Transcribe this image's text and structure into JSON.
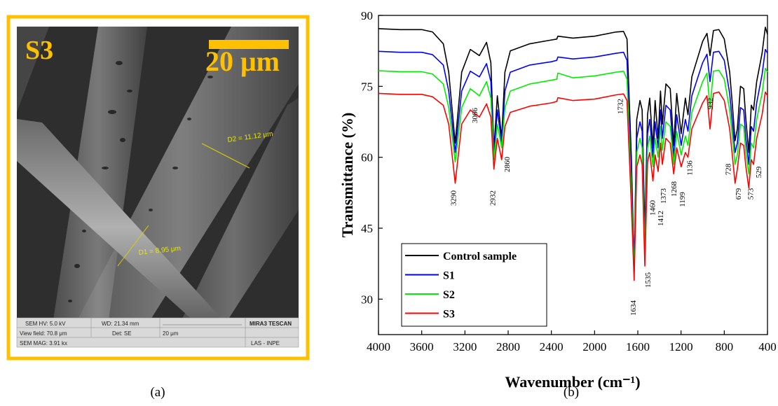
{
  "panel_a": {
    "label": "S3",
    "scale_bar": "20 μm",
    "measurements": [
      "D2 = 11.12 μm",
      "D1 = 8.95 μm"
    ],
    "info_bar": [
      [
        "SEM HV: 5.0 kV",
        "WD: 21.34 mm",
        "MIRA3 TESCAN"
      ],
      [
        "View field: 70.8 μm",
        "Det: SE",
        "20 μm"
      ],
      [
        "SEM MAG: 3.91 kx",
        "LAS - INPE"
      ]
    ]
  },
  "captions": [
    "(a)",
    "(b)"
  ],
  "chart_data": {
    "type": "line",
    "xlabel": "Wavenumber (cm⁻¹)",
    "ylabel": "Transmittance (%)",
    "xlim": [
      4000,
      400
    ],
    "xticks": [
      4000,
      3600,
      3200,
      2800,
      2400,
      2000,
      1600,
      1200,
      800,
      400
    ],
    "ylim": [
      22.5,
      90
    ],
    "yticks": [
      30,
      45,
      60,
      75,
      90
    ],
    "legend": "lower left",
    "x": [
      4000,
      3800,
      3600,
      3500,
      3400,
      3350,
      3290,
      3230,
      3150,
      3066,
      3000,
      2960,
      2932,
      2900,
      2860,
      2830,
      2780,
      2600,
      2400,
      2350,
      2340,
      2200,
      2000,
      1800,
      1732,
      1700,
      1660,
      1634,
      1610,
      1580,
      1560,
      1535,
      1510,
      1490,
      1460,
      1440,
      1412,
      1390,
      1373,
      1340,
      1300,
      1268,
      1240,
      1199,
      1160,
      1136,
      1100,
      1000,
      960,
      932,
      900,
      850,
      800,
      750,
      728,
      700,
      679,
      650,
      620,
      600,
      573,
      550,
      529,
      500,
      450,
      420,
      400
    ],
    "series": [
      {
        "name": "Control sample",
        "color": "#000000",
        "values": [
          87.2,
          87.0,
          87.0,
          86.5,
          84,
          78,
          63,
          78,
          82.8,
          81.5,
          84.3,
          80,
          61.5,
          73,
          64,
          78,
          82.5,
          84,
          84.8,
          85,
          85.6,
          85.2,
          85.6,
          86.5,
          86.6,
          85,
          60,
          36.5,
          68,
          72,
          70,
          44,
          69,
          72.5,
          62,
          72,
          64,
          74,
          67,
          75.5,
          74.5,
          62.5,
          73.5,
          65,
          72.5,
          69,
          77,
          84.5,
          86.2,
          81.5,
          86.8,
          87,
          85,
          78,
          72,
          63.5,
          66,
          75,
          74.5,
          68,
          61,
          71,
          70,
          76,
          82,
          87.5,
          86
        ]
      },
      {
        "name": "S1",
        "color": "#0000ff",
        "values": [
          82.4,
          82.2,
          82.2,
          81.7,
          79.5,
          74,
          61,
          74,
          78.2,
          77,
          79.8,
          76,
          60.5,
          70,
          63,
          74,
          78,
          79.5,
          80.2,
          80.5,
          81.2,
          80.8,
          81.2,
          82,
          82.2,
          80.5,
          56,
          36,
          64,
          67.5,
          65.5,
          42,
          65,
          68,
          60,
          67.5,
          62,
          70,
          64,
          71,
          70,
          60,
          69,
          62.5,
          68,
          65.5,
          73,
          80,
          81.8,
          76,
          82.2,
          82.4,
          80.5,
          73.5,
          68,
          61,
          63,
          70.5,
          70,
          64,
          58.5,
          66.5,
          65.5,
          71.5,
          77.5,
          82.8,
          82
        ]
      },
      {
        "name": "S2",
        "color": "#00ee00",
        "values": [
          78.3,
          78.1,
          78.1,
          77.6,
          75.5,
          70.5,
          59,
          70.5,
          74.5,
          73,
          76,
          72.5,
          59.5,
          67,
          62,
          70.5,
          74,
          75.5,
          76.3,
          76.5,
          77.8,
          76.8,
          77.2,
          78,
          78.2,
          76.5,
          53,
          35.5,
          61,
          64,
          62,
          40,
          62,
          64.5,
          58,
          64,
          60,
          66.5,
          61.5,
          67.5,
          66.5,
          58.5,
          65.5,
          60.5,
          64.5,
          62.5,
          69.5,
          76,
          77.8,
          70.5,
          78.2,
          78.4,
          76.5,
          70,
          65,
          58.5,
          60.5,
          67,
          66.5,
          61,
          56.5,
          63,
          62,
          68,
          73.5,
          78.8,
          78
        ]
      },
      {
        "name": "S3",
        "color": "#ff0000",
        "values": [
          73.5,
          73.3,
          73.3,
          72.8,
          71,
          67,
          54.5,
          67,
          70,
          68.5,
          71.3,
          68.5,
          57.5,
          64,
          59.5,
          66.5,
          69.5,
          70.8,
          71.5,
          71.8,
          72.6,
          72,
          72.3,
          73.2,
          73.4,
          72,
          50,
          34,
          58,
          60.5,
          58.5,
          37,
          59,
          61,
          55,
          60.5,
          57,
          63,
          58.5,
          64,
          63,
          56.5,
          62,
          58,
          61,
          60,
          66,
          71.5,
          73,
          66,
          73.5,
          73.8,
          72,
          66,
          61,
          54.5,
          57.5,
          63,
          62.5,
          58,
          53.5,
          59.5,
          58.5,
          64,
          69,
          73.8,
          73
        ]
      }
    ],
    "annotations": [
      "3290",
      "3066",
      "2932",
      "2860",
      "1732",
      "1634",
      "1535",
      "1460",
      "1412",
      "1373",
      "1268",
      "1199",
      "1136",
      "932",
      "728",
      "679",
      "573",
      "529"
    ]
  }
}
